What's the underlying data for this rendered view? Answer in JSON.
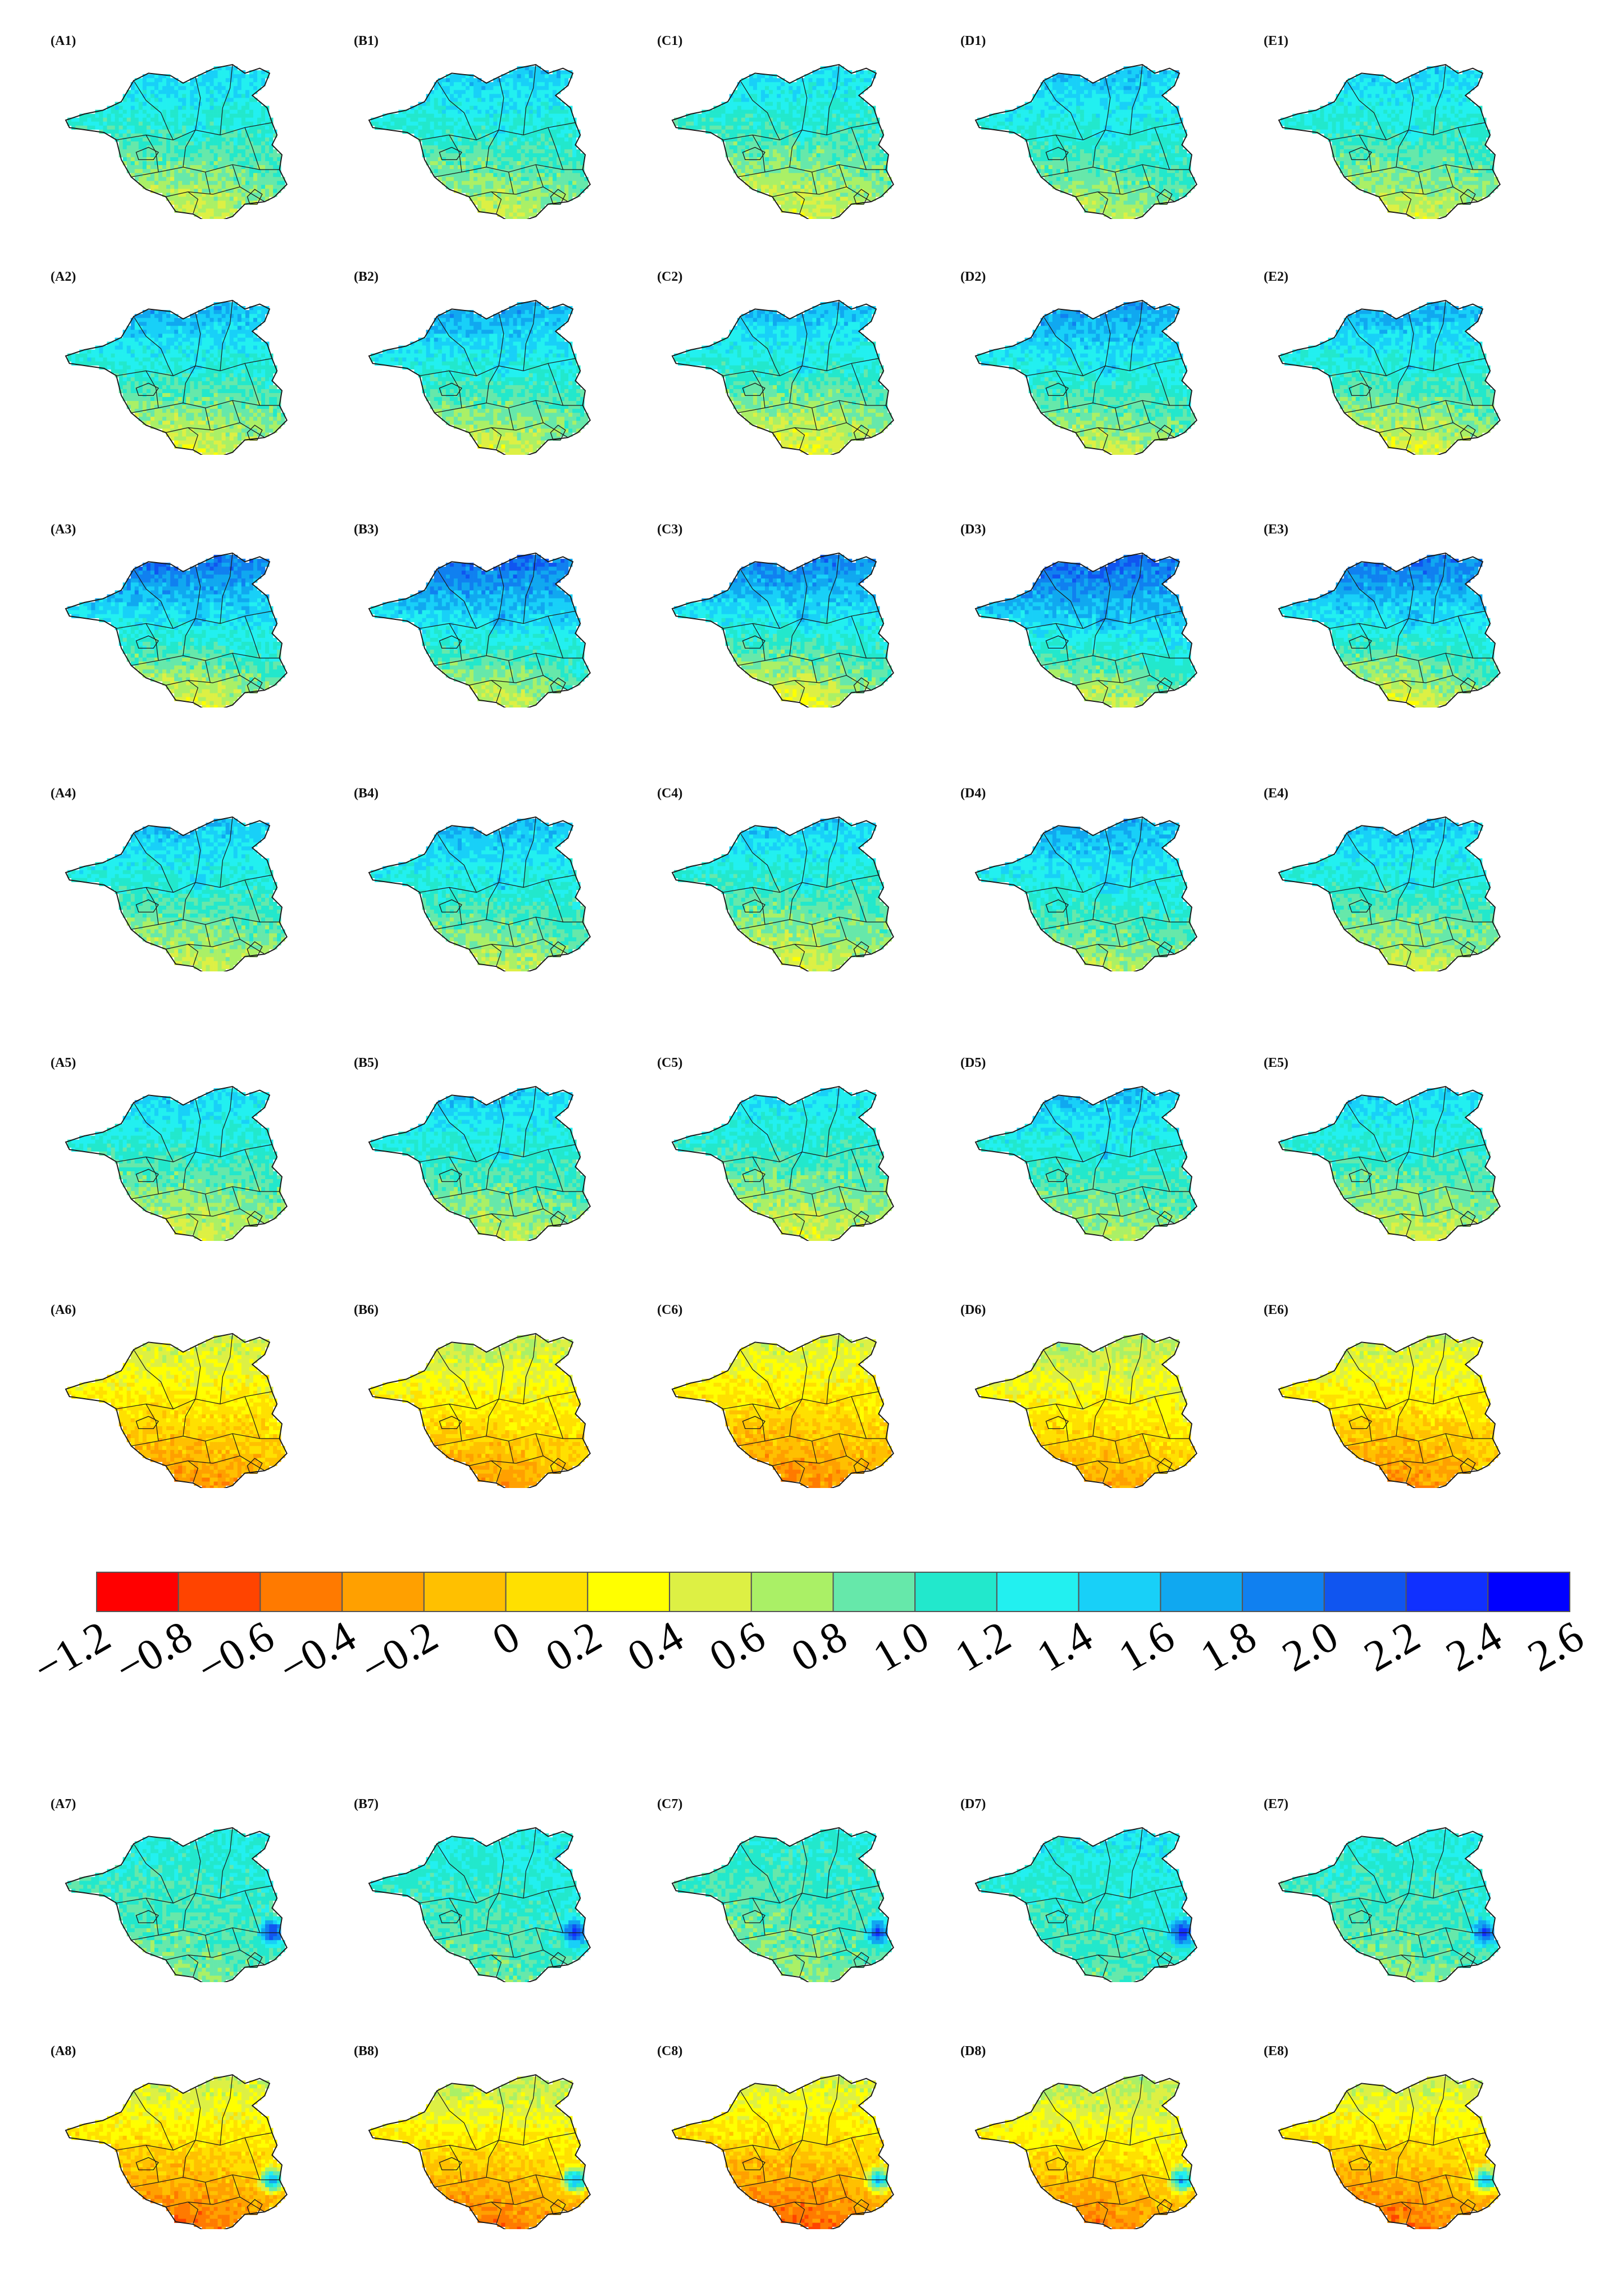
{
  "figure": {
    "rows": [
      "1",
      "2",
      "3",
      "4",
      "5",
      "6",
      "7",
      "8"
    ],
    "columns": [
      "A",
      "B",
      "C",
      "D",
      "E"
    ],
    "panel_labels": [
      [
        "(A1)",
        "(B1)",
        "(C1)",
        "(D1)",
        "(E1)"
      ],
      [
        "(A2)",
        "(B2)",
        "(C2)",
        "(D2)",
        "(E2)"
      ],
      [
        "(A3)",
        "(B3)",
        "(C3)",
        "(D3)",
        "(E3)"
      ],
      [
        "(A4)",
        "(B4)",
        "(C4)",
        "(D4)",
        "(E4)"
      ],
      [
        "(A5)",
        "(B5)",
        "(C5)",
        "(D5)",
        "(E5)"
      ],
      [
        "(A6)",
        "(B6)",
        "(C6)",
        "(D6)",
        "(E6)"
      ],
      [
        "(A7)",
        "(B7)",
        "(C7)",
        "(D7)",
        "(E7)"
      ],
      [
        "(A8)",
        "(B8)",
        "(C8)",
        "(D8)",
        "(E8)"
      ]
    ],
    "row_patterns": [
      {
        "row": "1",
        "north": 1.5,
        "south": 0.5,
        "east": 1.2,
        "spot": null
      },
      {
        "row": "2",
        "north": 1.7,
        "south": 0.4,
        "east": 1.2,
        "spot": null
      },
      {
        "row": "3",
        "north": 2.0,
        "south": 0.4,
        "east": 1.5,
        "spot": null
      },
      {
        "row": "4",
        "north": 1.6,
        "south": 0.5,
        "east": 1.2,
        "spot": null
      },
      {
        "row": "5",
        "north": 1.5,
        "south": 0.5,
        "east": 1.1,
        "spot": null
      },
      {
        "row": "6",
        "north": 0.6,
        "south": -0.4,
        "east": 0.3,
        "spot": null
      },
      {
        "row": "7",
        "north": 1.2,
        "south": 0.8,
        "east": 1.4,
        "spot": 2.4
      },
      {
        "row": "8",
        "north": 0.6,
        "south": -0.6,
        "east": 0.4,
        "spot": 1.8
      }
    ],
    "column_offsets": [
      0.0,
      0.05,
      -0.05,
      0.1,
      0.0
    ]
  },
  "colorbar": {
    "ticks": [
      "−1.2",
      "−0.8",
      "−0.6",
      "−0.4",
      "−0.2",
      "0",
      "0.2",
      "0.4",
      "0.6",
      "0.8",
      "1.0",
      "1.2",
      "1.4",
      "1.6",
      "1.8",
      "2.0",
      "2.2",
      "2.4",
      "2.6"
    ],
    "colors": [
      "#ff0000",
      "#ff4400",
      "#ff7a00",
      "#ffa000",
      "#ffc000",
      "#ffe000",
      "#ffff00",
      "#ddf044",
      "#aaf066",
      "#66e8aa",
      "#22e8cc",
      "#22f0f0",
      "#18d0f8",
      "#10a8f0",
      "#1080f0",
      "#1055f0",
      "#1030ff",
      "#0000ff"
    ]
  }
}
